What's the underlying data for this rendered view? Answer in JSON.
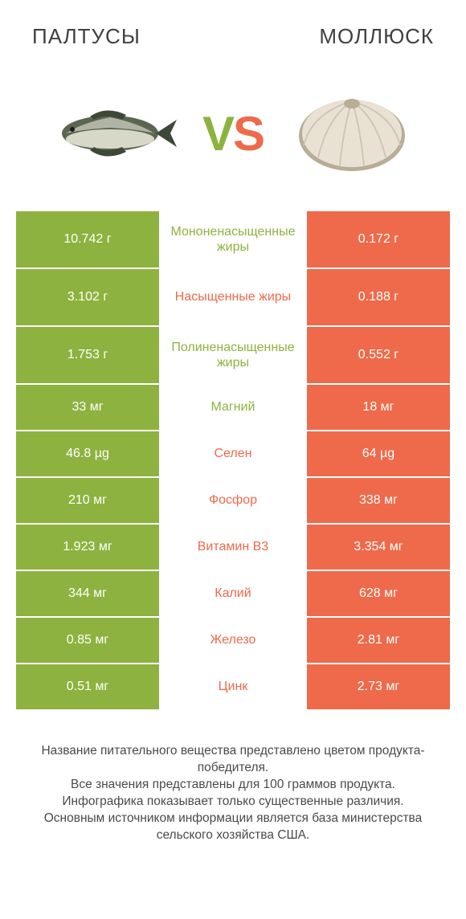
{
  "colors": {
    "green": "#8eb23f",
    "orange": "#ee6a4a",
    "text": "#404040",
    "footer": "#4a4a4a",
    "bg": "#ffffff"
  },
  "header": {
    "left": "ПАЛТУСЫ",
    "right": "МОЛЛЮСК"
  },
  "vs": {
    "v": "V",
    "s": "S"
  },
  "rows": [
    {
      "left": "10.742 г",
      "label": "Мононенасыщенные жиры",
      "right": "0.172 г",
      "winner": "left",
      "tall": true
    },
    {
      "left": "3.102 г",
      "label": "Насыщенные жиры",
      "right": "0.188 г",
      "winner": "right",
      "tall": true
    },
    {
      "left": "1.753 г",
      "label": "Полиненасыщенные жиры",
      "right": "0.552 г",
      "winner": "left",
      "tall": true
    },
    {
      "left": "33 мг",
      "label": "Магний",
      "right": "18 мг",
      "winner": "left",
      "tall": false
    },
    {
      "left": "46.8 µg",
      "label": "Селен",
      "right": "64 µg",
      "winner": "right",
      "tall": false
    },
    {
      "left": "210 мг",
      "label": "Фосфор",
      "right": "338 мг",
      "winner": "right",
      "tall": false
    },
    {
      "left": "1.923 мг",
      "label": "Витамин B3",
      "right": "3.354 мг",
      "winner": "right",
      "tall": false
    },
    {
      "left": "344 мг",
      "label": "Калий",
      "right": "628 мг",
      "winner": "right",
      "tall": false
    },
    {
      "left": "0.85 мг",
      "label": "Железо",
      "right": "2.81 мг",
      "winner": "right",
      "tall": false
    },
    {
      "left": "0.51 мг",
      "label": "Цинк",
      "right": "2.73 мг",
      "winner": "right",
      "tall": false
    }
  ],
  "footer_lines": [
    "Название питательного вещества представлено цветом продукта-победителя.",
    "Все значения представлены для 100 граммов продукта.",
    "Инфографика показывает только существенные различия.",
    "Основным источником информации является база министерства сельского хозяйства США."
  ],
  "fish": {
    "body": "#5a6650",
    "belly": "#d8d8c8",
    "stripe": "#e8e8dc",
    "fin": "#3e4838"
  },
  "clam": {
    "shell": "#e9e2d4",
    "edge": "#b8ad95",
    "ridge": "#cfc6b2"
  }
}
